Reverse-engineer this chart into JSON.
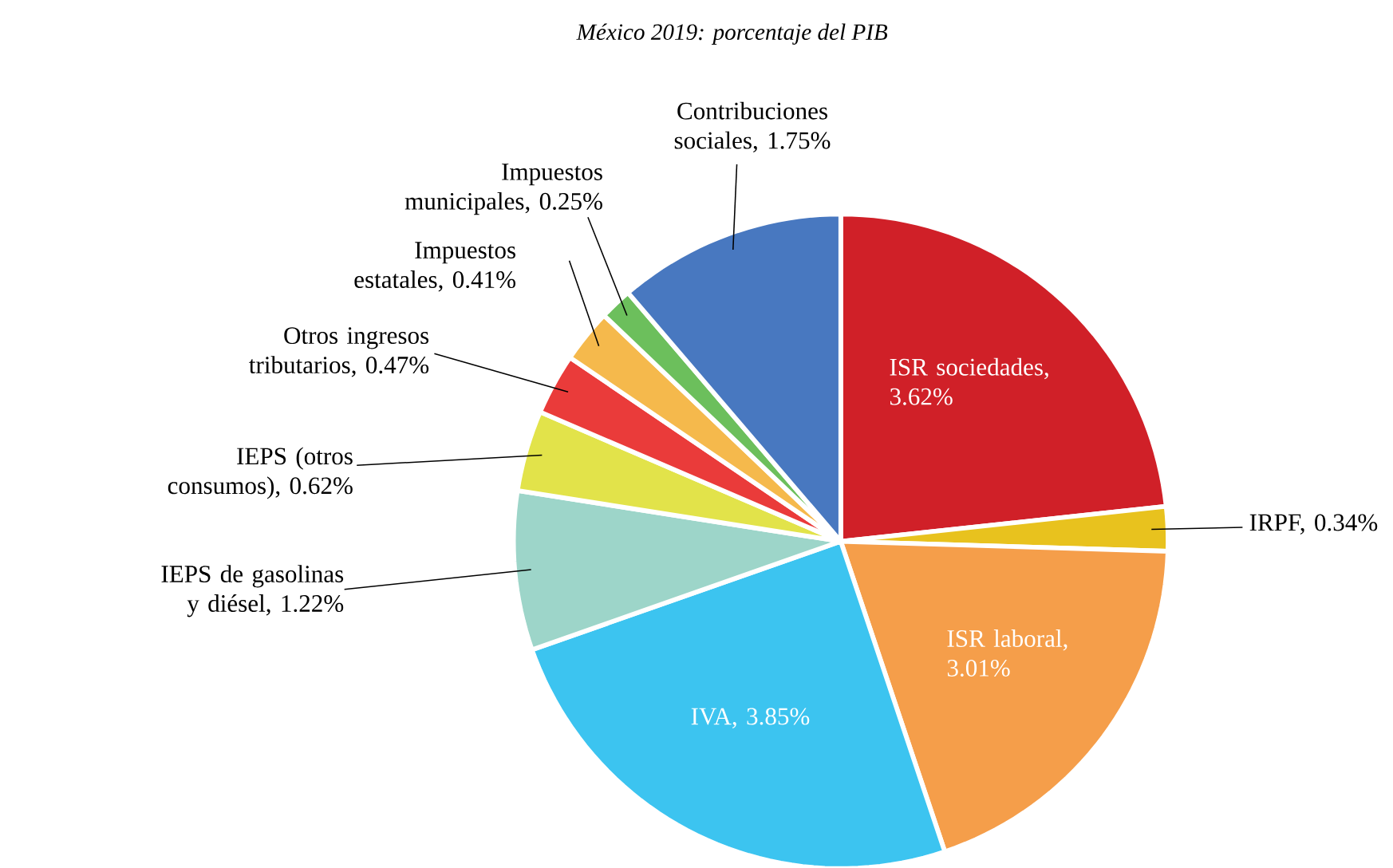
{
  "chart_data": {
    "type": "pie",
    "title": "México 2019: porcentaje del PIB",
    "categories": [
      "ISR sociedades, 3.62%",
      "IRPF, 0.34%",
      "ISR laboral, 3.01%",
      "IVA, 3.85%",
      "IEPS de gasolinas y diésel, 1.22%",
      "IEPS (otros consumos), 0.62%",
      "Otros ingresos tributarios, 0.47%",
      "Impuestos estatales, 0.41%",
      "Impuestos municipales, 0.25%",
      "Contribuciones sociales, 1.75%"
    ],
    "values": [
      3.62,
      0.34,
      3.01,
      3.85,
      1.22,
      0.62,
      0.47,
      0.41,
      0.25,
      1.75
    ],
    "colors": [
      "#d02028",
      "#e8c21e",
      "#f59e4a",
      "#3cc4f0",
      "#9dd5c9",
      "#e2e34a",
      "#ea3b3a",
      "#f5b94c",
      "#6cbf5c",
      "#4878c0"
    ]
  }
}
